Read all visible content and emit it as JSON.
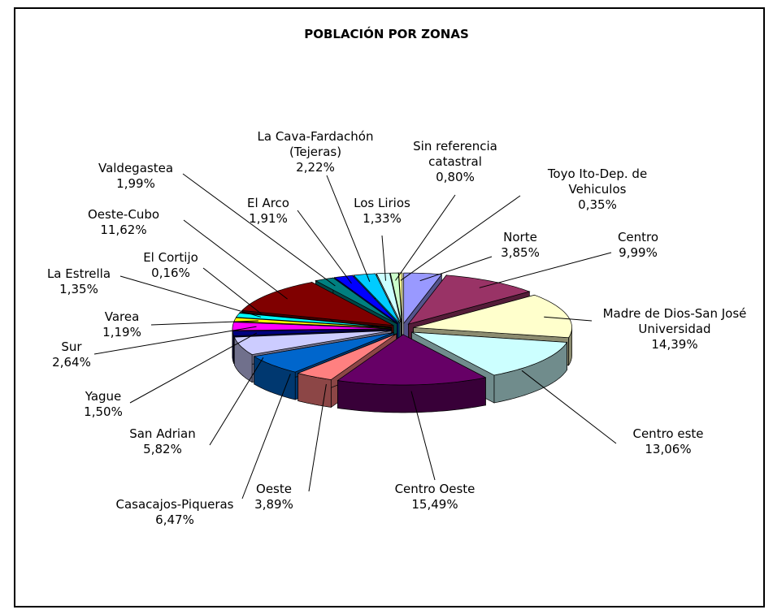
{
  "chart_data": {
    "type": "pie",
    "title": "POBLACIÓN POR ZONAS",
    "categories": [
      "Norte",
      "Centro",
      "Madre de Dios-San José Universidad",
      "Centro este",
      "Centro Oeste",
      "Oeste",
      "Casacajos-Piqueras",
      "San Adrian",
      "Yague",
      "Sur",
      "Varea",
      "La Estrella",
      "El Cortijo",
      "Oeste-Cubo",
      "Valdegastea",
      "El Arco",
      "La Cava-Fardachón (Tejeras)",
      "Los Lirios",
      "Sin referencia catastral",
      "Toyo Ito-Dep. de Vehiculos"
    ],
    "values": [
      3.85,
      9.99,
      14.39,
      13.06,
      15.49,
      3.89,
      6.47,
      5.82,
      1.5,
      2.64,
      1.19,
      1.35,
      0.16,
      11.62,
      1.99,
      1.91,
      2.22,
      1.33,
      0.8,
      0.35
    ],
    "value_labels": [
      "3,85%",
      "9,99%",
      "14,39%",
      "13,06%",
      "15,49%",
      "3,89%",
      "6,47%",
      "5,82%",
      "1,50%",
      "2,64%",
      "1,19%",
      "1,35%",
      "0,16%",
      "11,62%",
      "1,99%",
      "1,91%",
      "2,22%",
      "1,33%",
      "0,80%",
      "0,35%"
    ],
    "colors": [
      "#9999ff",
      "#993366",
      "#ffffcc",
      "#ccffff",
      "#660066",
      "#ff8080",
      "#0066cc",
      "#ccccff",
      "#000080",
      "#ff00ff",
      "#ffff00",
      "#00ffff",
      "#800080",
      "#800000",
      "#008080",
      "#0000ff",
      "#00ccff",
      "#ccffff",
      "#ccffcc",
      "#ffff99"
    ]
  }
}
